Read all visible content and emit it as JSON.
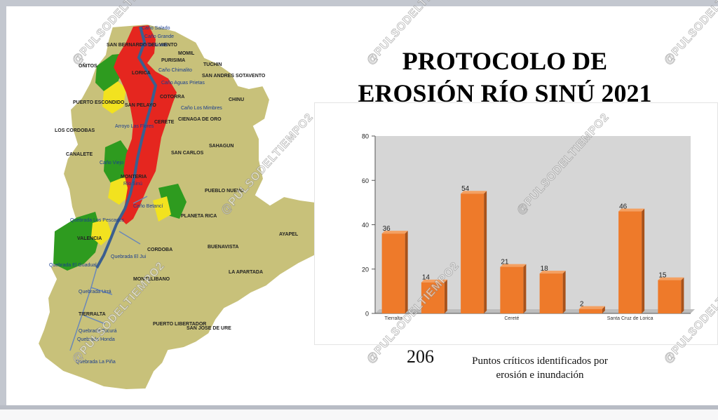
{
  "title_line1": "PROTOCOLO DE",
  "title_line2": "EROSIÓN RÍO SINÚ 2021",
  "summary": {
    "total": "206",
    "caption_line1": "Puntos críticos identificados por",
    "caption_line2": "erosión e inundación"
  },
  "watermark": "@PULSODELTIEMPO2",
  "map": {
    "municipalities": [
      "SAN BERNARDO DEL VIENTO",
      "MOMIL",
      "PURISIMA",
      "OÑITOS",
      "TUCHIN",
      "LORICA",
      "SAN ANDRES SOTAVENTO",
      "COTORRA",
      "CHINU",
      "SAN PELAYO",
      "PUERTO ESCONDIDO",
      "CIENAGA DE ORO",
      "CERETE",
      "LOS CORDOBAS",
      "SAHAGUN",
      "CANALETE",
      "SAN CARLOS",
      "MONTERIA",
      "PUEBLO NUEVO",
      "PLANETA RICA",
      "AYAPEL",
      "VALENCIA",
      "CORDOBA",
      "BUENAVISTA",
      "LA APARTADA",
      "MONTELIBANO",
      "TIERRALTA",
      "PUERTO LIBERTADOR",
      "SAN JOSE DE URE"
    ],
    "water_labels": [
      "Caño Salado",
      "Caño Grande",
      "Caño Sicará",
      "Caño Chimalito",
      "Caño Aguas Prietas",
      "Caño Los Mimbres",
      "Arroyo Las Flores",
      "Caño Viejo",
      "Río Sinú",
      "Caño Betancí",
      "Quebrada Los Pescados",
      "Quebrada El Jui",
      "Quebrada El Guadual",
      "Quebrada Urrá",
      "Quebrada Tucurá",
      "Quebrada Honda",
      "Quebrada La Piña"
    ]
  },
  "chart_data": {
    "type": "bar",
    "categories": [
      "Tierralta",
      "",
      "",
      "Cereté",
      "",
      "",
      "Santa Cruz de Lorica",
      ""
    ],
    "values": [
      36,
      14,
      54,
      21,
      18,
      2,
      46,
      15
    ],
    "ylim": [
      0,
      80
    ],
    "yticks": [
      0,
      20,
      40,
      60,
      80
    ],
    "grid": false,
    "bar_color": "#ee7a2a",
    "plot_background": "#d6d6d6",
    "data_labels": true
  }
}
